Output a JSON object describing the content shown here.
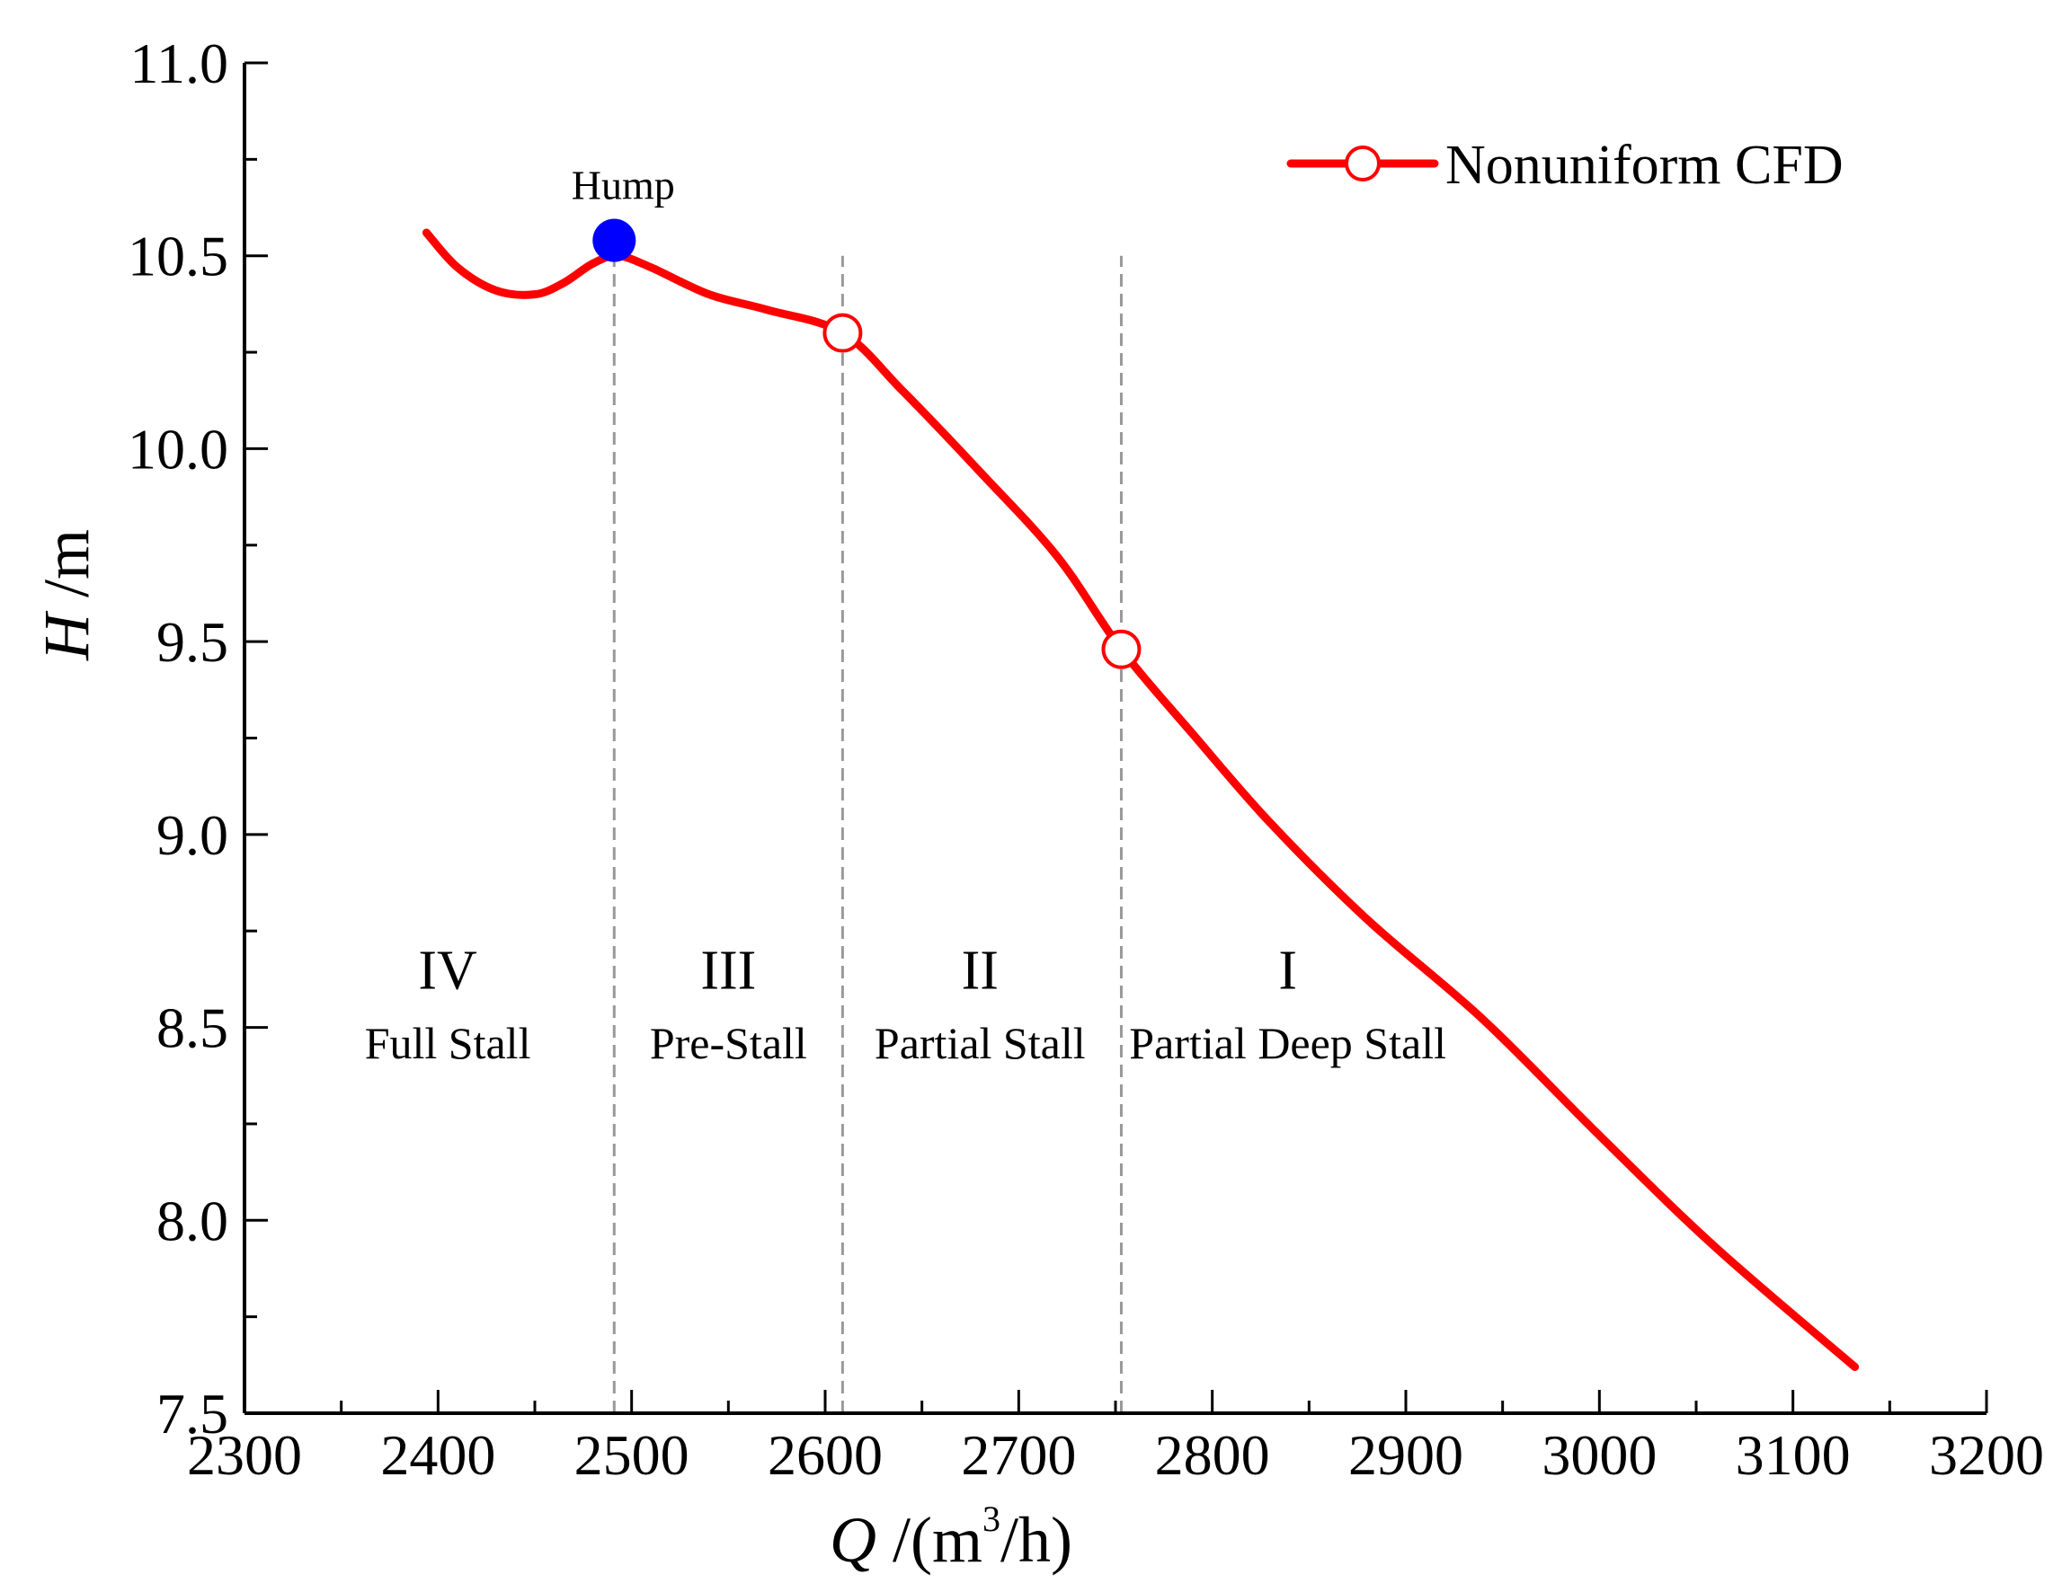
{
  "chart_data": {
    "type": "line",
    "title": "",
    "xlabel": {
      "symbol": "Q",
      "unit_prefix": " /(m",
      "unit_sup": "3",
      "unit_suffix": "/h)"
    },
    "ylabel": {
      "symbol": "H",
      "unit": " /m"
    },
    "xlim": [
      2300,
      3200
    ],
    "ylim": [
      7.5,
      11.0
    ],
    "x_ticks": [
      2300,
      2400,
      2500,
      2600,
      2700,
      2800,
      2900,
      3000,
      3100,
      3200
    ],
    "x_tick_labels": [
      "2300",
      "2400",
      "2500",
      "2600",
      "2700",
      "2800",
      "2900",
      "3000",
      "3100",
      "3200"
    ],
    "y_ticks": [
      7.5,
      8.0,
      8.5,
      9.0,
      9.5,
      10.0,
      10.5,
      11.0
    ],
    "y_tick_labels": [
      "7.5",
      "8.0",
      "8.5",
      "9.0",
      "9.5",
      "10.0",
      "10.5",
      "11.0"
    ],
    "grid": false,
    "legend_position": "top-right",
    "series": [
      {
        "name": "Nonuniform CFD",
        "color": "#ff0000",
        "x": [
          2394,
          2410,
          2430,
          2450,
          2465,
          2480,
          2493,
          2510,
          2540,
          2570,
          2609,
          2640,
          2680,
          2720,
          2753,
          2790,
          2830,
          2880,
          2940,
          3000,
          3060,
          3132
        ],
        "y": [
          10.56,
          10.47,
          10.41,
          10.4,
          10.43,
          10.48,
          10.5,
          10.47,
          10.4,
          10.36,
          10.3,
          10.15,
          9.94,
          9.72,
          9.48,
          9.26,
          9.03,
          8.78,
          8.52,
          8.22,
          7.93,
          7.62
        ]
      }
    ],
    "open_markers": [
      {
        "x": 2609,
        "y": 10.3
      },
      {
        "x": 2753,
        "y": 9.48
      }
    ],
    "hump": {
      "label": "Hump",
      "x": 2491,
      "y": 10.54,
      "color": "#0000ff"
    },
    "dividers": [
      2491,
      2609,
      2753
    ],
    "divider_color": "#999999",
    "regions": [
      {
        "numeral": "IV",
        "name": "Full Stall",
        "x_center": 2405
      },
      {
        "numeral": "III",
        "name": "Pre-Stall",
        "x_center": 2550
      },
      {
        "numeral": "II",
        "name": "Partial Stall",
        "x_center": 2680
      },
      {
        "numeral": "I",
        "name": "Partial Deep Stall",
        "x_center": 2839
      }
    ],
    "region_numeral_y": 8.6,
    "region_name_y": 8.42
  }
}
